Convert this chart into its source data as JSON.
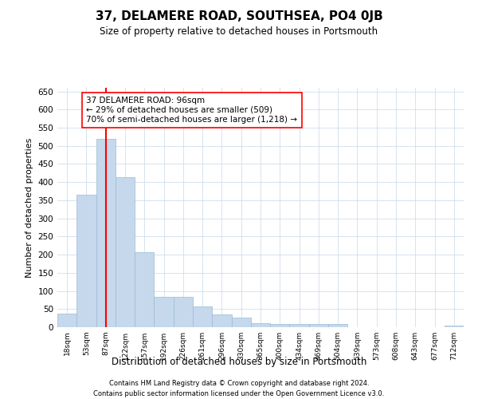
{
  "title": "37, DELAMERE ROAD, SOUTHSEA, PO4 0JB",
  "subtitle": "Size of property relative to detached houses in Portsmouth",
  "xlabel": "Distribution of detached houses by size in Portsmouth",
  "ylabel": "Number of detached properties",
  "bar_values": [
    37,
    365,
    519,
    413,
    207,
    83,
    83,
    57,
    35,
    26,
    12,
    9,
    9,
    9,
    9,
    0,
    0,
    0,
    0,
    0,
    5
  ],
  "categories": [
    "18sqm",
    "53sqm",
    "87sqm",
    "122sqm",
    "157sqm",
    "192sqm",
    "226sqm",
    "261sqm",
    "296sqm",
    "330sqm",
    "365sqm",
    "400sqm",
    "434sqm",
    "469sqm",
    "504sqm",
    "539sqm",
    "573sqm",
    "608sqm",
    "643sqm",
    "677sqm",
    "712sqm"
  ],
  "bar_color": "#c5d8ec",
  "bar_edge_color": "#9bbbd4",
  "vline_x": 2,
  "vline_color": "red",
  "annotation_text": "37 DELAMERE ROAD: 96sqm\n← 29% of detached houses are smaller (509)\n70% of semi-detached houses are larger (1,218) →",
  "annotation_box_color": "white",
  "annotation_box_edge_color": "red",
  "ylim": [
    0,
    660
  ],
  "yticks": [
    0,
    50,
    100,
    150,
    200,
    250,
    300,
    350,
    400,
    450,
    500,
    550,
    600,
    650
  ],
  "footnote1": "Contains HM Land Registry data © Crown copyright and database right 2024.",
  "footnote2": "Contains public sector information licensed under the Open Government Licence v3.0.",
  "bg_color": "white",
  "grid_color": "#c8d8e8"
}
